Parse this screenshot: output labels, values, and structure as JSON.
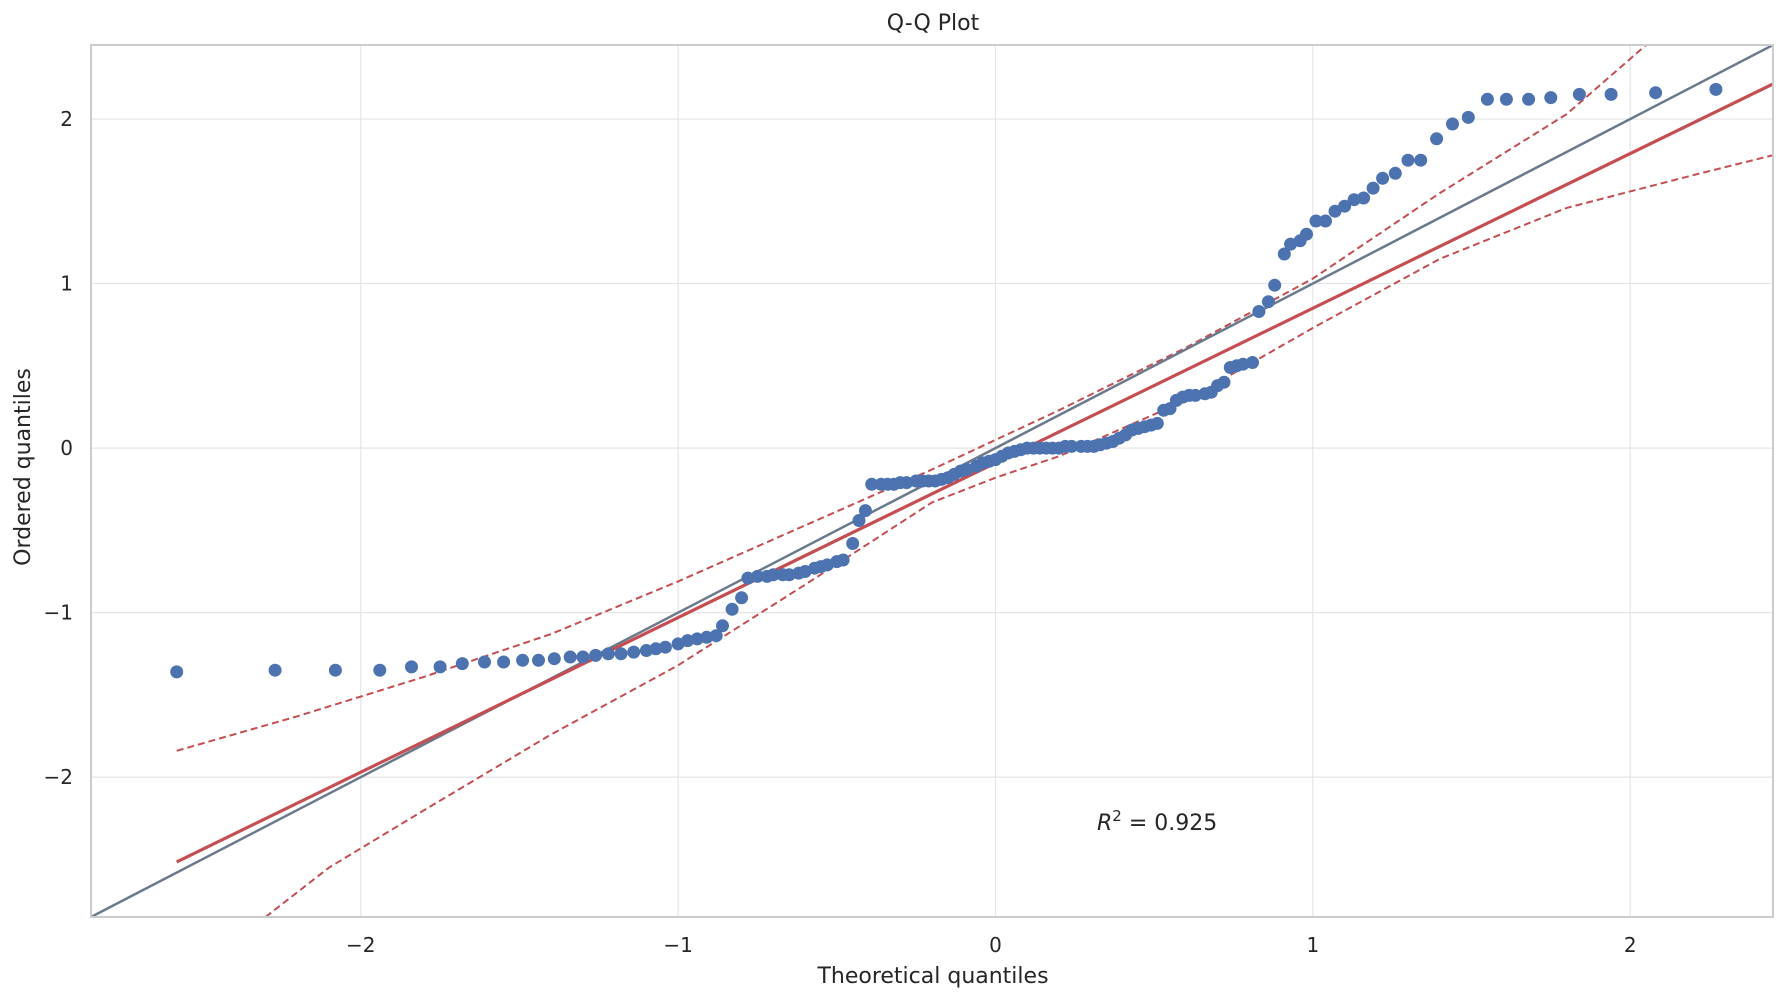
{
  "chart_data": {
    "type": "scatter",
    "title": "Q-Q Plot",
    "xlabel": "Theoretical quantiles",
    "ylabel": "Ordered quantiles",
    "xlim": [
      -2.85,
      2.45
    ],
    "ylim": [
      -2.85,
      2.45
    ],
    "xticks": [
      -2,
      -1,
      0,
      1,
      2
    ],
    "yticks": [
      -2,
      -1,
      0,
      1,
      2
    ],
    "grid": true,
    "annotation": {
      "prefix": "R",
      "exponent": "2",
      "suffix": " = 0.925"
    },
    "colors": {
      "points": "#4c72b0",
      "fit_line": "#c44e52",
      "reference_line": "#6a7a8c",
      "grid": "#e5e5e5",
      "spine": "#cccccc"
    },
    "points": [
      [
        -2.58,
        -1.36
      ],
      [
        -2.27,
        -1.35
      ],
      [
        -2.08,
        -1.35
      ],
      [
        -1.94,
        -1.35
      ],
      [
        -1.84,
        -1.33
      ],
      [
        -1.75,
        -1.33
      ],
      [
        -1.68,
        -1.31
      ],
      [
        -1.61,
        -1.3
      ],
      [
        -1.55,
        -1.3
      ],
      [
        -1.49,
        -1.29
      ],
      [
        -1.44,
        -1.29
      ],
      [
        -1.39,
        -1.28
      ],
      [
        -1.34,
        -1.27
      ],
      [
        -1.3,
        -1.27
      ],
      [
        -1.26,
        -1.26
      ],
      [
        -1.22,
        -1.25
      ],
      [
        -1.18,
        -1.25
      ],
      [
        -1.14,
        -1.24
      ],
      [
        -1.1,
        -1.23
      ],
      [
        -1.07,
        -1.22
      ],
      [
        -1.04,
        -1.21
      ],
      [
        -1.0,
        -1.19
      ],
      [
        -0.97,
        -1.17
      ],
      [
        -0.94,
        -1.16
      ],
      [
        -0.91,
        -1.15
      ],
      [
        -0.88,
        -1.14
      ],
      [
        -0.86,
        -1.08
      ],
      [
        -0.83,
        -0.98
      ],
      [
        -0.8,
        -0.91
      ],
      [
        -0.78,
        -0.79
      ],
      [
        -0.75,
        -0.78
      ],
      [
        -0.72,
        -0.78
      ],
      [
        -0.7,
        -0.77
      ],
      [
        -0.67,
        -0.77
      ],
      [
        -0.65,
        -0.77
      ],
      [
        -0.62,
        -0.76
      ],
      [
        -0.6,
        -0.75
      ],
      [
        -0.57,
        -0.73
      ],
      [
        -0.55,
        -0.72
      ],
      [
        -0.53,
        -0.71
      ],
      [
        -0.5,
        -0.69
      ],
      [
        -0.48,
        -0.68
      ],
      [
        -0.45,
        -0.58
      ],
      [
        -0.43,
        -0.44
      ],
      [
        -0.41,
        -0.38
      ],
      [
        -0.39,
        -0.22
      ],
      [
        -0.36,
        -0.22
      ],
      [
        -0.34,
        -0.22
      ],
      [
        -0.32,
        -0.22
      ],
      [
        -0.3,
        -0.21
      ],
      [
        -0.28,
        -0.21
      ],
      [
        -0.25,
        -0.2
      ],
      [
        -0.23,
        -0.2
      ],
      [
        -0.21,
        -0.2
      ],
      [
        -0.19,
        -0.2
      ],
      [
        -0.17,
        -0.19
      ],
      [
        -0.15,
        -0.18
      ],
      [
        -0.13,
        -0.16
      ],
      [
        -0.11,
        -0.14
      ],
      [
        -0.09,
        -0.13
      ],
      [
        -0.06,
        -0.11
      ],
      [
        -0.04,
        -0.09
      ],
      [
        -0.02,
        -0.08
      ],
      [
        0.0,
        -0.07
      ],
      [
        0.02,
        -0.05
      ],
      [
        0.04,
        -0.03
      ],
      [
        0.06,
        -0.02
      ],
      [
        0.08,
        -0.01
      ],
      [
        0.1,
        0.0
      ],
      [
        0.12,
        0.0
      ],
      [
        0.14,
        0.0
      ],
      [
        0.16,
        0.0
      ],
      [
        0.18,
        0.0
      ],
      [
        0.2,
        0.0
      ],
      [
        0.22,
        0.01
      ],
      [
        0.24,
        0.01
      ],
      [
        0.27,
        0.01
      ],
      [
        0.29,
        0.01
      ],
      [
        0.31,
        0.01
      ],
      [
        0.33,
        0.02
      ],
      [
        0.35,
        0.03
      ],
      [
        0.37,
        0.04
      ],
      [
        0.39,
        0.06
      ],
      [
        0.41,
        0.08
      ],
      [
        0.43,
        0.11
      ],
      [
        0.45,
        0.12
      ],
      [
        0.47,
        0.13
      ],
      [
        0.49,
        0.14
      ],
      [
        0.51,
        0.15
      ],
      [
        0.53,
        0.23
      ],
      [
        0.55,
        0.24
      ],
      [
        0.57,
        0.29
      ],
      [
        0.59,
        0.31
      ],
      [
        0.61,
        0.32
      ],
      [
        0.63,
        0.32
      ],
      [
        0.66,
        0.33
      ],
      [
        0.68,
        0.34
      ],
      [
        0.7,
        0.38
      ],
      [
        0.72,
        0.4
      ],
      [
        0.74,
        0.49
      ],
      [
        0.76,
        0.5
      ],
      [
        0.78,
        0.51
      ],
      [
        0.81,
        0.52
      ],
      [
        0.83,
        0.83
      ],
      [
        0.86,
        0.89
      ],
      [
        0.88,
        0.99
      ],
      [
        0.91,
        1.18
      ],
      [
        0.93,
        1.24
      ],
      [
        0.96,
        1.26
      ],
      [
        0.98,
        1.3
      ],
      [
        1.01,
        1.38
      ],
      [
        1.04,
        1.38
      ],
      [
        1.07,
        1.44
      ],
      [
        1.1,
        1.47
      ],
      [
        1.13,
        1.51
      ],
      [
        1.16,
        1.52
      ],
      [
        1.19,
        1.58
      ],
      [
        1.22,
        1.64
      ],
      [
        1.26,
        1.67
      ],
      [
        1.3,
        1.75
      ],
      [
        1.34,
        1.75
      ],
      [
        1.39,
        1.88
      ],
      [
        1.44,
        1.97
      ],
      [
        1.49,
        2.01
      ],
      [
        1.55,
        2.12
      ],
      [
        1.61,
        2.12
      ],
      [
        1.68,
        2.12
      ],
      [
        1.75,
        2.13
      ],
      [
        1.84,
        2.15
      ],
      [
        1.94,
        2.15
      ],
      [
        2.08,
        2.16
      ],
      [
        2.27,
        2.18
      ]
    ],
    "fit_line": {
      "slope": 0.94,
      "intercept": -0.09,
      "x_range": [
        -2.58,
        2.45
      ]
    },
    "reference_line": {
      "slope": 1.0,
      "intercept": 0.0
    },
    "confidence_band": {
      "upper": [
        [
          -2.58,
          -1.84
        ],
        [
          -2.2,
          -1.63
        ],
        [
          -1.8,
          -1.39
        ],
        [
          -1.4,
          -1.13
        ],
        [
          -1.0,
          -0.81
        ],
        [
          -0.6,
          -0.47
        ],
        [
          -0.2,
          -0.13
        ],
        [
          0.0,
          0.05
        ],
        [
          0.2,
          0.23
        ],
        [
          0.6,
          0.61
        ],
        [
          1.0,
          1.03
        ],
        [
          1.4,
          1.55
        ],
        [
          1.8,
          2.03
        ],
        [
          2.05,
          2.45
        ]
      ],
      "lower": [
        [
          -2.3,
          -2.85
        ],
        [
          -2.1,
          -2.55
        ],
        [
          -1.8,
          -2.2
        ],
        [
          -1.4,
          -1.74
        ],
        [
          -1.0,
          -1.32
        ],
        [
          -0.6,
          -0.83
        ],
        [
          -0.2,
          -0.33
        ],
        [
          0.0,
          -0.18
        ],
        [
          0.2,
          -0.05
        ],
        [
          0.6,
          0.29
        ],
        [
          1.0,
          0.73
        ],
        [
          1.4,
          1.15
        ],
        [
          1.8,
          1.46
        ],
        [
          2.2,
          1.66
        ],
        [
          2.45,
          1.78
        ]
      ]
    }
  }
}
